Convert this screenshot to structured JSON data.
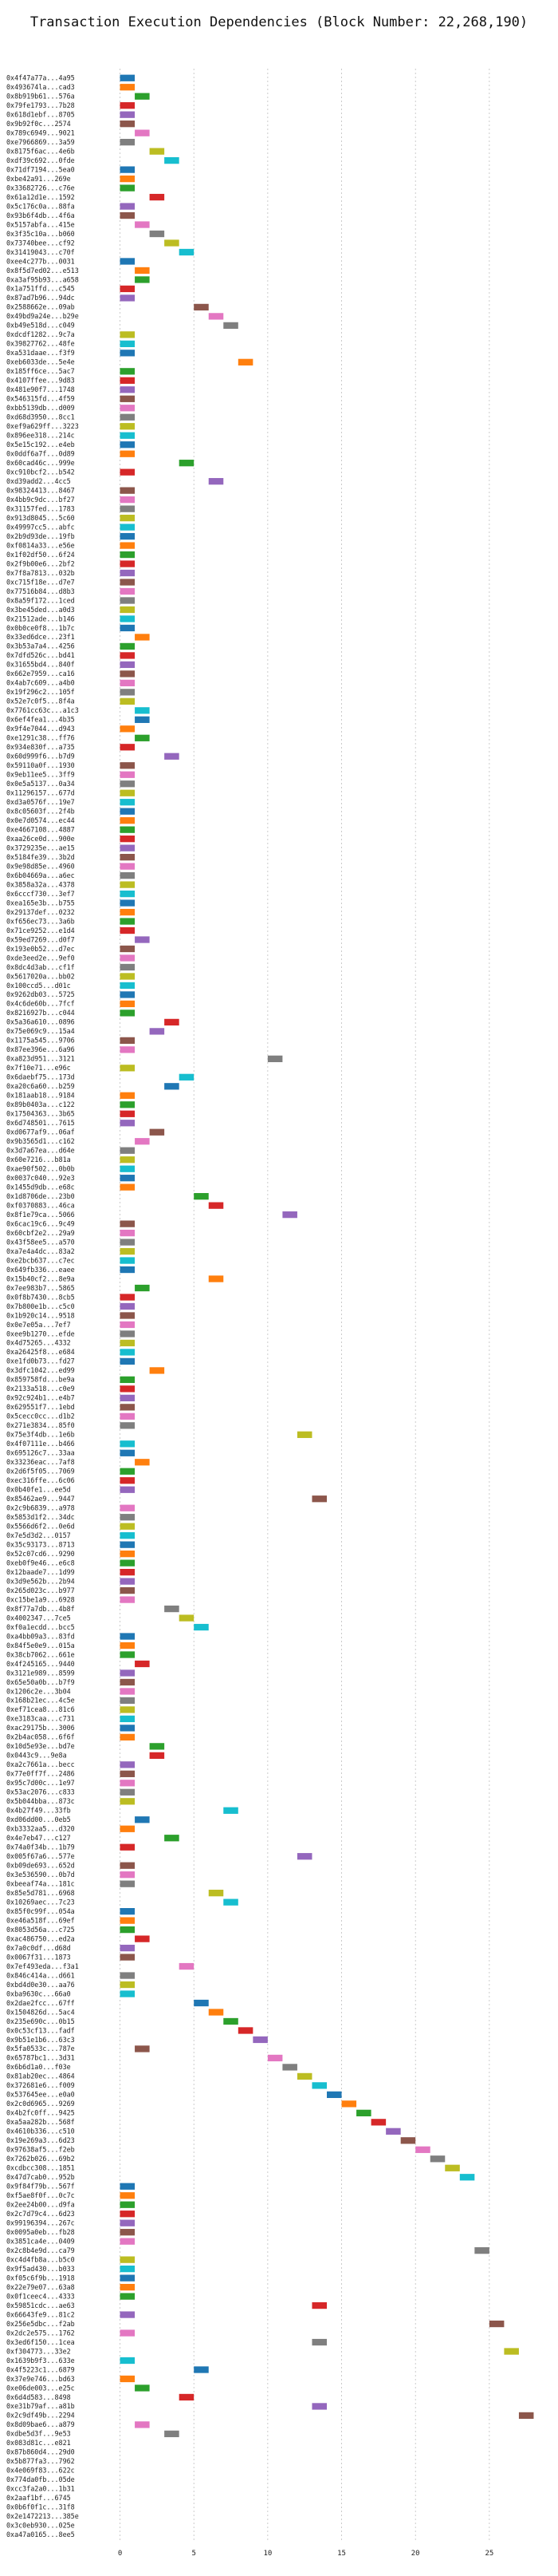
{
  "chart_data": {
    "type": "bar",
    "subtype": "gantt-horizontal",
    "title": "Transaction Execution Dependencies (Block Number: 22,268,190)",
    "xlabel": "",
    "ylabel": "",
    "xlim": [
      -1,
      29
    ],
    "xticks": [
      0,
      5,
      10,
      15,
      20,
      25
    ],
    "grid": "vertical-dotted",
    "legend": "none",
    "palette": [
      "#1f77b4",
      "#ff7f0e",
      "#2ca02c",
      "#d62728",
      "#9467bd",
      "#8c564b",
      "#e377c2",
      "#7f7f7f",
      "#bcbd22",
      "#17becf"
    ],
    "categories": [
      "0x4f47a77a...4a95",
      "0x493674la...cad3",
      "0x8b919b61...576a",
      "0x79fe1793...7b28",
      "0x618d1ebf...8705",
      "0x9b92f0c...2574",
      "0x789c6949...9021",
      "0xe7966869...3a59",
      "0x8175f6ac...4e6b",
      "0xdf39c692...0fde",
      "0x71df7194...5ea0",
      "0xbe42a91...269e",
      "0x33682726...c76e",
      "0x61a12d1e...1592",
      "0x5c176c0a...88fa",
      "0x93b6f4db...4f6a",
      "0x5157abfa...415e",
      "0x3f35c10a...b060",
      "0x73740bee...cf92",
      "0x31419043...c70f",
      "0xee4c277b...0031",
      "0x8f5d7ed02...e513",
      "0xa3af95b93...a658",
      "0x1a751ffd...c545",
      "0x87ad7b96...94dc",
      "0x2588662e...09ab",
      "0x49bd9a24e...b29e",
      "0xb49e518d...c049",
      "0xdcdf1282...9c7a",
      "0x39827762...48fe",
      "0xa531daae...f3f9",
      "0xeb6033de...5e4e",
      "0x185ff6ce...5ac7",
      "0x4107ffee...9d83",
      "0x481e90f7...1748",
      "0x546315fd...4f59",
      "0xbb5139db...d009",
      "0xd68d3950...8cc1",
      "0xef9a629ff...3223",
      "0x896ee318...214c",
      "0x5e15c192...e4eb",
      "0x0ddf6a7f...0d89",
      "0x60cad46c...999e",
      "0xc910bcf2...b542",
      "0xd39add2...4cc5",
      "0x98324413...8467",
      "0x4bb9c9dc...bf27",
      "0x31157fed...1783",
      "0x913d8045...5c60",
      "0x49997cc5...abfc",
      "0x2b9d93de...19fb",
      "0xf0814a33...e56e",
      "0x1f02df50...6f24",
      "0x2f9b00e6...2bf2",
      "0x7f8a7813...032b",
      "0xc715f18e...d7e7",
      "0x77516b84...d8b3",
      "0x8a59f172...1ced",
      "0x3be45ded...a0d3",
      "0x21512ade...b146",
      "0x0b0ce0f8...1b7c",
      "0x33ed6dce...23f1",
      "0x3b53a7a4...4256",
      "0x7dfd526c...bd41",
      "0x31655bd4...840f",
      "0x662e7959...ca16",
      "0x4ab7c609...a4b0",
      "0x19f296c2...105f",
      "0x52e7c0f5...8f4a",
      "0x7761cc63c...a1c3",
      "0x6ef4fea1...4b35",
      "0x9f4e7044...d943",
      "0xe1291c38...ff76",
      "0x934e830f...a735",
      "0x60d999f6...b7d9",
      "0x59110a0f...1930",
      "0x9eb11ee5...3ff9",
      "0x0e5a5137...0a34",
      "0x11296157...677d",
      "0xd3a0576f...19e7",
      "0x8c05603f...2f4b",
      "0x0e7d0574...ec44",
      "0xe4667108...4887",
      "0xaa26ce0d...900e",
      "0x3729235e...ae15",
      "0x5184fe39...3b2d",
      "0x9e98d85e...4960",
      "0x6b04669a...a6ec",
      "0x3858a32a...4378",
      "0x6cccf730...3ef7",
      "0xea165e3b...b755",
      "0x29137def...0232",
      "0xf656ec73...3a6b",
      "0x71ce9252...e1d4",
      "0x59ed7269...d0f7",
      "0x193e0b52...d7ec",
      "0xde3eed2e...9ef0",
      "0x8dc4d3ab...cf1f",
      "0x5617020a...bb02",
      "0x100ccd5...d01c",
      "0x9262db03...5725",
      "0x4c6de60b...7fcf",
      "0x8216927b...c044",
      "0x5a36a610...0896",
      "0x75e069c9...15a4",
      "0x1175a545...9706",
      "0x87ee396e...6a96",
      "0xa823d951...3121",
      "0x7f10e71...e96c",
      "0x6daebf75...173d",
      "0xa20c6a60...b259",
      "0x181aab18...9184",
      "0x89b0403a...c122",
      "0x17504363...3b65",
      "0x6d748501...7615",
      "0xd0677af9...06af",
      "0x9b3565d1...c162",
      "0x3d7a67ea...d64e",
      "0x60e7216...b81a",
      "0xae90f502...0b0b",
      "0x0037c040...92e3",
      "0x1455d9db...e68c",
      "0x1d8706de...23b0",
      "0xf0370883...46ca",
      "0x8f1e79ca...5066",
      "0x6cac19c6...9c49",
      "0x60cbf2e2...29a9",
      "0x43f58ee5...a570",
      "0xa7e4a4dc...83a2",
      "0xe2bcb637...c7ec",
      "0x649fb336...eaee",
      "0x15b40cf2...8e9a",
      "0x7ee983b7...5865",
      "0x0f8b7430...8cb5",
      "0x7b800e1b...c5c0",
      "0x1b920c14...9518",
      "0x0e7e05a...7ef7",
      "0xee9b1270...efde",
      "0x4d75265...4332",
      "0xa26425f8...e684",
      "0xe1fd0b73...fd27",
      "0x3dfc1042...ed99",
      "0x859758fd...be9a",
      "0x2133a518...c0e9",
      "0x92c924b1...e4b7",
      "0x629551f7...1ebd",
      "0x5cecc0cc...d1b2",
      "0x271e3834...85f0",
      "0x75e3f4db...1e6b",
      "0x4f07111e...b466",
      "0x695126c7...33aa",
      "0x33236eac...7af8",
      "0x2d6f5f05...7069",
      "0xec316ffe...6c06",
      "0x0b40fe1...ee5d",
      "0x85462ae9...9447",
      "0x2c9b6839...a978",
      "0x5853d1f2...34dc",
      "0x5566d6f2...0e6d",
      "0x7e5d3d2...0157",
      "0x35c93173...8713",
      "0x52c07cd6...9290",
      "0xeb0f9e46...e6c8",
      "0x12baade7...1d99",
      "0x3d9e562b...2b94",
      "0x265d023c...b977",
      "0xc15be1a9...6928",
      "0x8f77a7db...4b8f",
      "0x4002347...7ce5",
      "0xf0a1ecdd...bcc5",
      "0xa4bb09a3...83fd",
      "0x84f5e0e9...015a",
      "0x38cb7062...661e",
      "0x4f245165...9440",
      "0x3121e989...8599",
      "0x65e50a0b...b7f9",
      "0x1206c2e...3b04",
      "0x168b21ec...4c5e",
      "0xef71cea8...81c6",
      "0xe3183caa...c731",
      "0xac29175b...3006",
      "0x2b4ac058...6f6f",
      "0x10d5e93e...bd7e",
      "0x0443c9...9e8a",
      "0xa2c7661a...becc",
      "0x77e0ff7f...2486",
      "0x95c7d00c...1e97",
      "0x53ac2076...c833",
      "0x5b044bba...873c",
      "0x4b27f49...33fb",
      "0xd06dd00...0eb5",
      "0xb3332aa5...d320",
      "0x4e7eb47...c127",
      "0x74a0f34b...1b79",
      "0x005f67a6...577e",
      "0xb09de693...652d",
      "0x3e536590...0b7d",
      "0xbeeaf74a...181c",
      "0x85e5d781...6968",
      "0x10269aec...7c23",
      "0x85f0c99f...054a",
      "0xe46a518f...69ef",
      "0x8053d56a...c725",
      "0xac486750...ed2a",
      "0x7a0c0df...d68d",
      "0x0067f31...1873",
      "0x7ef493eda...f3a1",
      "0x846c414a...d661",
      "0xbd4d0e30...aa76",
      "0xba9630c...66a0",
      "0x2dae2fcc...67ff",
      "0x1504826d...5ac4",
      "0x235e690c...0b15",
      "0x0c53cf13...fadf",
      "0x9b51e1b6...63c3",
      "0x5fa0533c...787e",
      "0x65787bc1...3d31",
      "0x6b6d1a0...f03e",
      "0x81ab20ec...4864",
      "0x372681e6...f009",
      "0x537645ee...e0a0",
      "0x2c0d6965...9269",
      "0x4b2fc0ff...9425",
      "0xa5aa282b...568f",
      "0x4610b336...c510",
      "0x19e269a3...6d23",
      "0x97638af5...f2eb",
      "0x7262b026...69b2",
      "0xcdbcc308...1851",
      "0x47d7cab0...952b",
      "0x9f84f79b...567f",
      "0xf5ae8f0f...0c7c",
      "0x2ee24b00...d9fa",
      "0x2c7d79c4...6d23",
      "0x99196394...267c",
      "0x0095a0eb...fb28",
      "0x3851ca4e...0409",
      "0x2c8b4e9d...ca79",
      "0xc4d4fb8a...b5c0",
      "0x9f5ad430...b033",
      "0xf05c6f9b...1918",
      "0x22e79e07...63a8",
      "0x0f1ceec4...4333",
      "0x59851cdc...ae63",
      "0x66643fe9...81c2",
      "0x256e5dbc...f2ab",
      "0x2dc2e575...1762",
      "0x3ed6f150...1cea",
      "0xf304773...33e2",
      "0x1639b9f3...633e",
      "0x4f5223c1...6879",
      "0x37e9e746...bd63",
      "0xe06de003...e25c",
      "0x6d4d583...8498",
      "0xe31b79af...a81b",
      "0x2c9df49b...2294",
      "0x8d09bae6...a879",
      "0xdbe5d3f...9e53",
      "0x083d81c...e821",
      "0x87b860d4...29d0",
      "0x5b877fa3...7962",
      "0x4e069f83...622c",
      "0x774da0fb...05de",
      "0xcc3fa2a0...1b31",
      "0x2aaf1bf...6745",
      "0x0b6f0f1c...31f8",
      "0x2e1472213...385e",
      "0x3c0eb930...025e",
      "0xa47a0165...8ee5"
    ],
    "start": [
      0,
      0,
      1,
      0,
      0,
      0,
      1,
      0,
      2,
      3,
      0,
      0,
      0,
      2,
      0,
      0,
      1,
      2,
      3,
      4,
      0,
      1,
      1,
      0,
      0,
      5,
      6,
      7,
      0,
      0,
      0,
      8,
      0,
      0,
      0,
      0,
      0,
      0,
      0,
      0,
      0,
      0,
      4,
      0,
      6,
      0,
      0,
      0,
      0,
      0,
      0,
      0,
      0,
      0,
      0,
      0,
      0,
      0,
      0,
      0,
      0,
      1,
      0,
      0,
      0,
      0,
      0,
      0,
      0,
      1,
      1,
      0,
      1,
      0,
      3,
      0,
      0,
      0,
      0,
      0,
      0,
      0,
      0,
      0,
      0,
      0,
      0,
      0,
      0,
      0,
      0,
      0,
      0,
      0,
      1,
      0,
      0,
      0,
      0,
      0,
      0,
      0,
      0,
      3,
      2,
      0,
      0,
      10,
      0,
      4,
      3,
      0,
      0,
      0,
      0,
      2,
      1,
      0,
      0,
      0,
      0,
      0,
      5,
      6,
      11,
      0,
      0,
      0,
      0,
      0,
      0,
      6,
      1,
      0,
      0,
      0,
      0,
      0,
      0,
      0,
      0,
      2,
      0,
      0,
      0,
      0,
      0,
      0,
      12,
      0,
      0,
      1,
      0,
      0,
      0,
      13,
      0,
      0,
      0,
      0,
      0,
      0,
      0,
      0,
      0,
      0,
      0,
      3,
      4,
      5,
      0,
      0,
      0,
      1,
      0,
      0,
      0,
      0,
      0,
      0,
      0,
      0,
      2,
      2,
      0,
      0,
      0,
      0,
      0,
      7,
      1,
      0,
      3,
      0,
      12,
      0,
      0,
      0,
      6,
      7,
      0,
      0,
      0,
      1,
      0,
      0,
      4,
      0,
      0,
      0,
      5,
      6,
      7,
      8,
      9,
      1,
      10,
      11,
      12,
      13,
      14,
      15,
      16,
      17,
      18,
      19,
      20,
      21,
      22,
      23,
      0,
      0,
      0,
      0,
      0,
      0,
      0,
      24,
      0,
      0,
      0,
      0,
      0,
      13,
      0,
      25,
      0,
      13,
      26,
      0,
      5,
      0,
      1,
      4,
      13,
      27,
      1,
      3
    ],
    "duration": [
      1,
      1,
      1,
      1,
      1,
      1,
      1,
      1,
      1,
      1,
      1,
      1,
      1,
      1,
      1,
      1,
      1,
      1,
      1,
      1,
      1,
      1,
      1,
      1,
      1,
      1,
      1,
      1,
      1,
      1,
      1,
      1,
      1,
      1,
      1,
      1,
      1,
      1,
      1,
      1,
      1,
      1,
      1,
      1,
      1,
      1,
      1,
      1,
      1,
      1,
      1,
      1,
      1,
      1,
      1,
      1,
      1,
      1,
      1,
      1,
      1,
      1,
      1,
      1,
      1,
      1,
      1,
      1,
      1,
      1,
      1,
      1,
      1,
      1,
      1,
      1,
      1,
      1,
      1,
      1,
      1,
      1,
      1,
      1,
      1,
      1,
      1,
      1,
      1,
      1,
      1,
      1,
      1,
      1,
      1,
      1,
      1,
      1,
      1,
      1,
      1,
      1,
      1,
      1,
      1,
      1,
      1,
      1,
      1,
      1,
      1,
      1,
      1,
      1,
      1,
      1,
      1,
      1,
      1,
      1,
      1,
      1,
      1,
      1,
      1,
      1,
      1,
      1,
      1,
      1,
      1,
      1,
      1,
      1,
      1,
      1,
      1,
      1,
      1,
      1,
      1,
      1,
      1,
      1,
      1,
      1,
      1,
      1,
      1,
      1,
      1,
      1,
      1,
      1,
      1,
      1,
      1,
      1,
      1,
      1,
      1,
      1,
      1,
      1,
      1,
      1,
      1,
      1,
      1,
      1,
      1,
      1,
      1,
      1,
      1,
      1,
      1,
      1,
      1,
      1,
      1,
      1,
      1,
      1,
      1,
      1,
      1,
      1,
      1,
      1,
      1,
      1,
      1,
      1,
      1,
      1,
      1,
      1,
      1,
      1,
      1,
      1,
      1,
      1,
      1,
      1,
      1,
      1,
      1,
      1,
      1,
      1,
      1,
      1,
      1,
      1,
      1,
      1,
      1,
      1,
      1,
      1,
      1,
      1,
      1,
      1,
      1,
      1,
      1,
      1,
      1,
      1,
      1,
      1,
      1,
      1,
      1,
      1,
      1,
      1,
      1,
      1,
      1,
      1,
      1,
      1,
      1,
      1,
      1,
      1,
      1,
      1,
      1,
      1,
      1,
      1,
      1,
      1,
      1,
      1
    ]
  }
}
